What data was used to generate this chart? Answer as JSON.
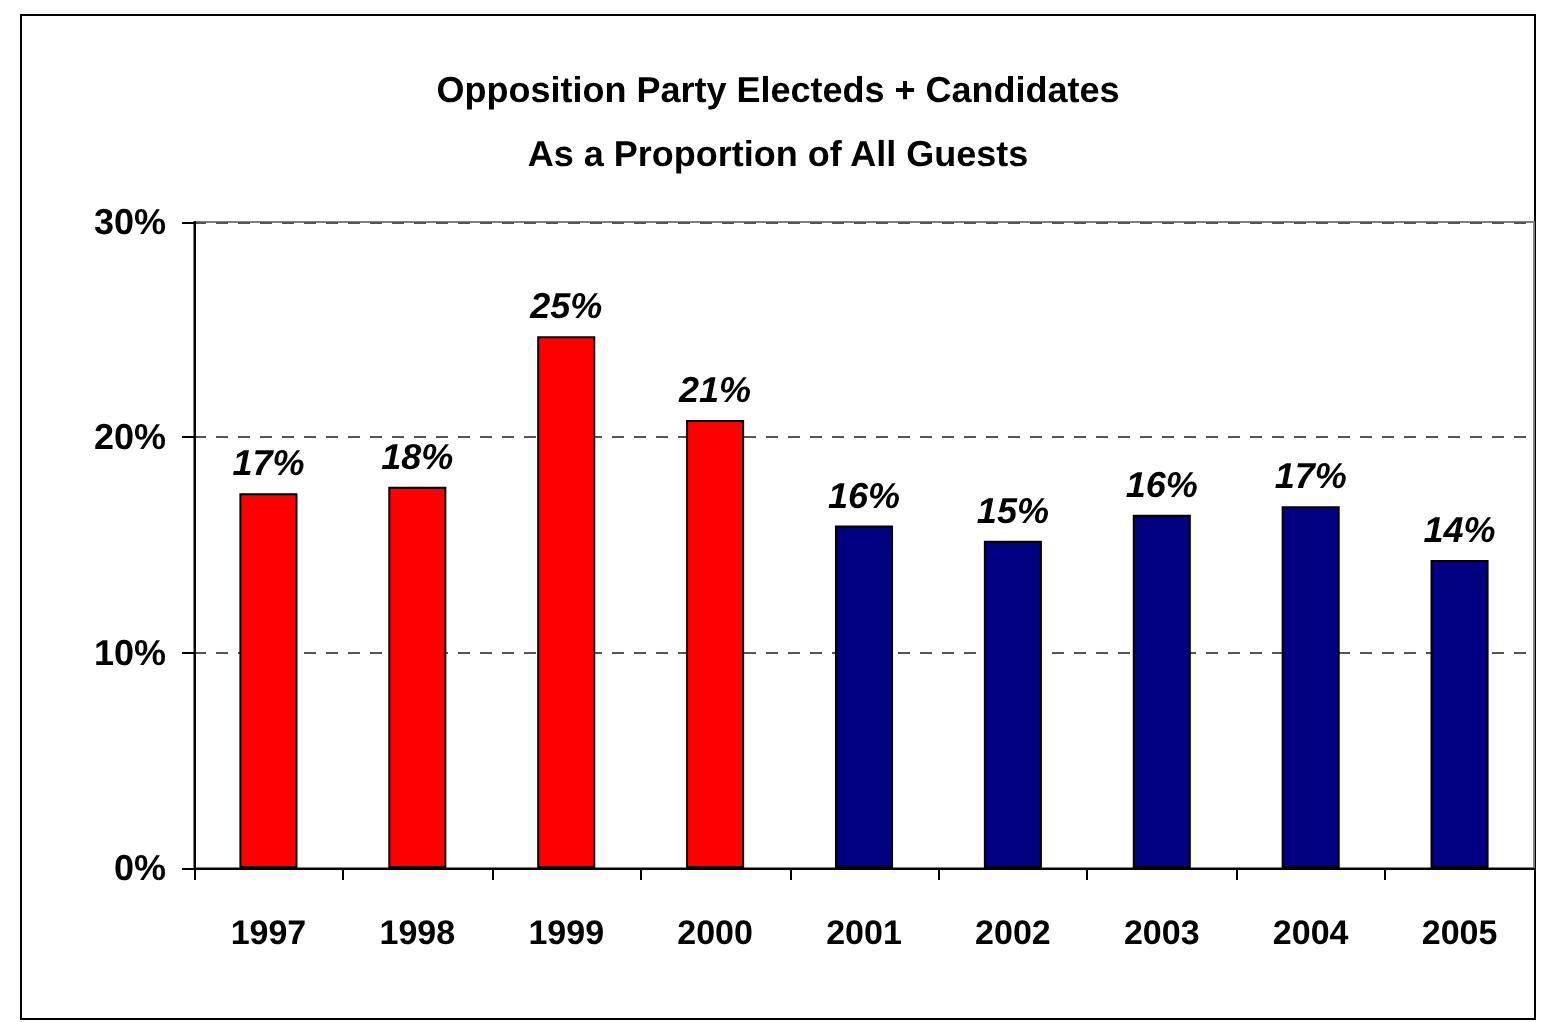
{
  "chart_data": {
    "type": "bar",
    "title": "Opposition Party Electeds + Candidates\nAs a Proportion of All Guests",
    "categories": [
      "1997",
      "1998",
      "1999",
      "2000",
      "2001",
      "2002",
      "2003",
      "2004",
      "2005"
    ],
    "values": [
      17.4,
      17.7,
      24.7,
      20.8,
      15.9,
      15.2,
      16.4,
      16.8,
      14.3
    ],
    "colors": [
      "#ff0000",
      "#ff0000",
      "#ff0000",
      "#ff0000",
      "#000080",
      "#000080",
      "#000080",
      "#000080",
      "#000080"
    ],
    "value_labels": [
      "17%",
      "18%",
      "25%",
      "21%",
      "16%",
      "15%",
      "16%",
      "17%",
      "14%"
    ],
    "ylim": [
      0,
      30
    ],
    "yticks": [
      {
        "value": 0,
        "label": "0%"
      },
      {
        "value": 10,
        "label": "10%"
      },
      {
        "value": 20,
        "label": "20%"
      },
      {
        "value": 30,
        "label": "30%"
      }
    ],
    "grid": "y"
  }
}
